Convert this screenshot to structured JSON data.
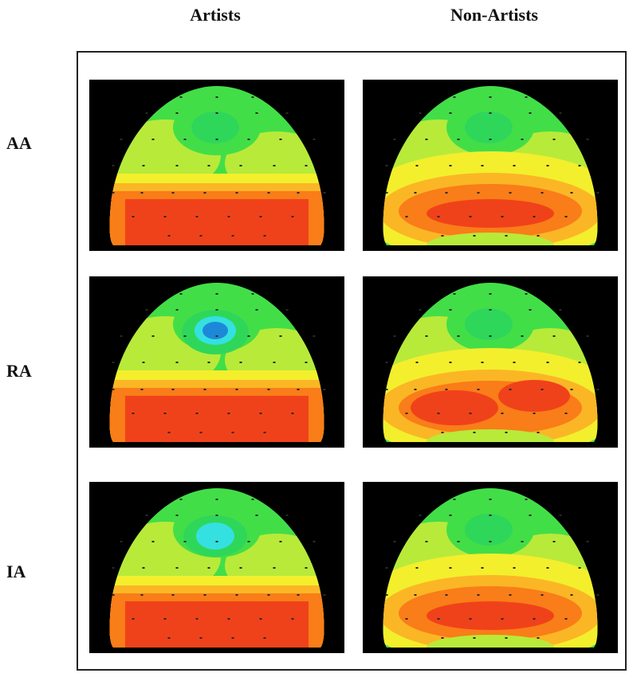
{
  "columns": [
    "Artists",
    "Non-Artists"
  ],
  "rows": [
    "AA",
    "RA",
    "IA"
  ],
  "colors": {
    "red": "#f0421a",
    "orange": "#f97d18",
    "orange_light": "#fbb626",
    "yellow": "#f3ef2c",
    "yellow_green": "#b8ea3a",
    "green": "#42de48",
    "green_mid": "#2ed75a",
    "cyan": "#35e0e0",
    "blue": "#1e88d8",
    "electrode": "#2a2a2a"
  },
  "maps": [
    {
      "name": "AA-artists",
      "group": "Artists",
      "condition": "AA",
      "pattern": "posterior-strong"
    },
    {
      "name": "AA-non-artists",
      "group": "Non-Artists",
      "condition": "AA",
      "pattern": "posterior-moderate"
    },
    {
      "name": "RA-artists",
      "group": "Artists",
      "condition": "RA",
      "pattern": "posterior-strong-blue-frontal"
    },
    {
      "name": "RA-non-artists",
      "group": "Non-Artists",
      "condition": "RA",
      "pattern": "posterior-split"
    },
    {
      "name": "IA-artists",
      "group": "Artists",
      "condition": "IA",
      "pattern": "posterior-strong-cyan-frontal"
    },
    {
      "name": "IA-non-artists",
      "group": "Non-Artists",
      "condition": "IA",
      "pattern": "posterior-moderate"
    }
  ]
}
